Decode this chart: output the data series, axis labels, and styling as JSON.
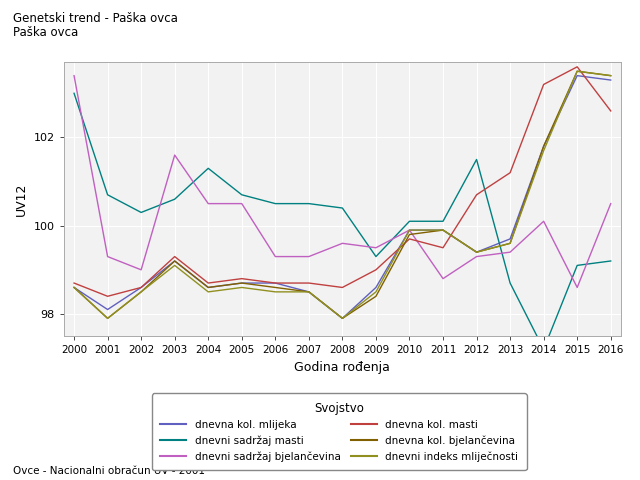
{
  "title1": "Genetski trend - Paška ovca",
  "title2": "Paška ovca",
  "xlabel": "Godina rođenja",
  "ylabel": "UV12",
  "footnote": "Ovce - Nacionalni obračun UV - 2001",
  "legend_title": "Svojstvo",
  "years": [
    2000,
    2001,
    2002,
    2003,
    2004,
    2005,
    2006,
    2007,
    2008,
    2009,
    2010,
    2011,
    2012,
    2013,
    2014,
    2015,
    2016
  ],
  "series": {
    "dnevna kol. mlijeka": {
      "color": "#6060c0",
      "values": [
        98.6,
        98.1,
        98.6,
        99.2,
        98.6,
        98.7,
        98.7,
        98.5,
        97.9,
        98.6,
        99.9,
        99.9,
        99.4,
        99.7,
        101.8,
        103.4,
        103.3
      ]
    },
    "dnevni sadržaj masti": {
      "color": "#008080",
      "values": [
        103.0,
        100.7,
        100.3,
        100.6,
        101.3,
        100.7,
        100.5,
        100.5,
        100.4,
        99.3,
        100.1,
        100.1,
        101.5,
        98.7,
        97.2,
        99.1,
        99.2
      ]
    },
    "dnevni sadržaj bjelančevina": {
      "color": "#c060c0",
      "values": [
        103.4,
        99.3,
        99.0,
        101.6,
        100.5,
        100.5,
        99.3,
        99.3,
        99.6,
        99.5,
        99.9,
        98.8,
        99.3,
        99.4,
        100.1,
        98.6,
        100.5
      ]
    },
    "dnevna kol. masti": {
      "color": "#c04040",
      "values": [
        98.7,
        98.4,
        98.6,
        99.3,
        98.7,
        98.8,
        98.7,
        98.7,
        98.6,
        99.0,
        99.7,
        99.5,
        100.7,
        101.2,
        103.2,
        103.6,
        102.6
      ]
    },
    "dnevna kol. bjelančevina": {
      "color": "#806000",
      "values": [
        98.6,
        97.9,
        98.5,
        99.2,
        98.6,
        98.7,
        98.6,
        98.5,
        97.9,
        98.4,
        99.8,
        99.9,
        99.4,
        99.6,
        101.8,
        103.5,
        103.4
      ]
    },
    "dnevni indeks mliječnosti": {
      "color": "#909020",
      "values": [
        98.6,
        97.9,
        98.5,
        99.1,
        98.5,
        98.6,
        98.5,
        98.5,
        97.9,
        98.5,
        99.9,
        99.9,
        99.4,
        99.6,
        101.7,
        103.5,
        103.4
      ]
    }
  },
  "ylim": [
    97.5,
    103.7
  ],
  "yticks": [
    98,
    100,
    102
  ],
  "bg_color": "#ffffff",
  "plot_bg_color": "#f2f2f2",
  "grid_color": "#ffffff"
}
